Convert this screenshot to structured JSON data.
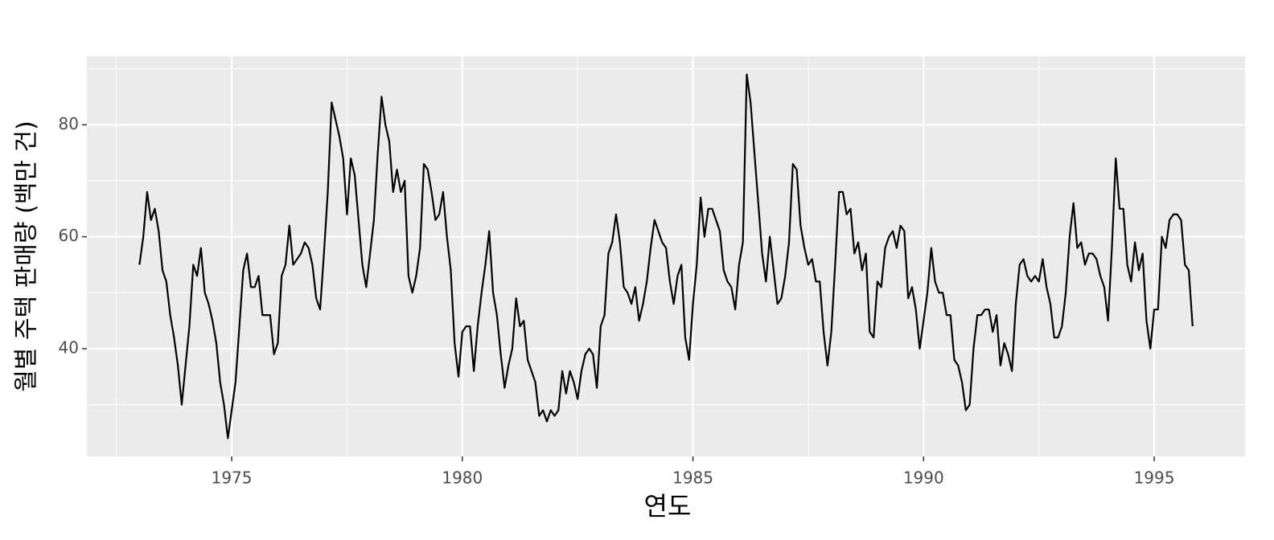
{
  "chart_data": {
    "type": "line",
    "x_label": "연도",
    "y_label": "월별 주택 판매량 (백만 건)",
    "x": [
      1973,
      1973.083,
      1973.167,
      1973.25,
      1973.333,
      1973.417,
      1973.5,
      1973.583,
      1973.667,
      1973.75,
      1973.833,
      1973.917,
      1974,
      1974.083,
      1974.167,
      1974.25,
      1974.333,
      1974.417,
      1974.5,
      1974.583,
      1974.667,
      1974.75,
      1974.833,
      1974.917,
      1975,
      1975.083,
      1975.167,
      1975.25,
      1975.333,
      1975.417,
      1975.5,
      1975.583,
      1975.667,
      1975.75,
      1975.833,
      1975.917,
      1976,
      1976.083,
      1976.167,
      1976.25,
      1976.333,
      1976.417,
      1976.5,
      1976.583,
      1976.667,
      1976.75,
      1976.833,
      1976.917,
      1977,
      1977.083,
      1977.167,
      1977.25,
      1977.333,
      1977.417,
      1977.5,
      1977.583,
      1977.667,
      1977.75,
      1977.833,
      1977.917,
      1978,
      1978.083,
      1978.167,
      1978.25,
      1978.333,
      1978.417,
      1978.5,
      1978.583,
      1978.667,
      1978.75,
      1978.833,
      1978.917,
      1979,
      1979.083,
      1979.167,
      1979.25,
      1979.333,
      1979.417,
      1979.5,
      1979.583,
      1979.667,
      1979.75,
      1979.833,
      1979.917,
      1980,
      1980.083,
      1980.167,
      1980.25,
      1980.333,
      1980.417,
      1980.5,
      1980.583,
      1980.667,
      1980.75,
      1980.833,
      1980.917,
      1981,
      1981.083,
      1981.167,
      1981.25,
      1981.333,
      1981.417,
      1981.5,
      1981.583,
      1981.667,
      1981.75,
      1981.833,
      1981.917,
      1982,
      1982.083,
      1982.167,
      1982.25,
      1982.333,
      1982.417,
      1982.5,
      1982.583,
      1982.667,
      1982.75,
      1982.833,
      1982.917,
      1983,
      1983.083,
      1983.167,
      1983.25,
      1983.333,
      1983.417,
      1983.5,
      1983.583,
      1983.667,
      1983.75,
      1983.833,
      1983.917,
      1984,
      1984.083,
      1984.167,
      1984.25,
      1984.333,
      1984.417,
      1984.5,
      1984.583,
      1984.667,
      1984.75,
      1984.833,
      1984.917,
      1985,
      1985.083,
      1985.167,
      1985.25,
      1985.333,
      1985.417,
      1985.5,
      1985.583,
      1985.667,
      1985.75,
      1985.833,
      1985.917,
      1986,
      1986.083,
      1986.167,
      1986.25,
      1986.333,
      1986.417,
      1986.5,
      1986.583,
      1986.667,
      1986.75,
      1986.833,
      1986.917,
      1987,
      1987.083,
      1987.167,
      1987.25,
      1987.333,
      1987.417,
      1987.5,
      1987.583,
      1987.667,
      1987.75,
      1987.833,
      1987.917,
      1988,
      1988.083,
      1988.167,
      1988.25,
      1988.333,
      1988.417,
      1988.5,
      1988.583,
      1988.667,
      1988.75,
      1988.833,
      1988.917,
      1989,
      1989.083,
      1989.167,
      1989.25,
      1989.333,
      1989.417,
      1989.5,
      1989.583,
      1989.667,
      1989.75,
      1989.833,
      1989.917,
      1990,
      1990.083,
      1990.167,
      1990.25,
      1990.333,
      1990.417,
      1990.5,
      1990.583,
      1990.667,
      1990.75,
      1990.833,
      1990.917,
      1991,
      1991.083,
      1991.167,
      1991.25,
      1991.333,
      1991.417,
      1991.5,
      1991.583,
      1991.667,
      1991.75,
      1991.833,
      1991.917,
      1992,
      1992.083,
      1992.167,
      1992.25,
      1992.333,
      1992.417,
      1992.5,
      1992.583,
      1992.667,
      1992.75,
      1992.833,
      1992.917,
      1993,
      1993.083,
      1993.167,
      1993.25,
      1993.333,
      1993.417,
      1993.5,
      1993.583,
      1993.667,
      1993.75,
      1993.833,
      1993.917,
      1994,
      1994.083,
      1994.167,
      1994.25,
      1994.333,
      1994.417,
      1994.5,
      1994.583,
      1994.667,
      1994.75,
      1994.833,
      1994.917,
      1995,
      1995.083,
      1995.167,
      1995.25,
      1995.333,
      1995.417,
      1995.5,
      1995.583,
      1995.667,
      1995.75,
      1995.833
    ],
    "values": [
      55,
      60,
      68,
      63,
      65,
      61,
      54,
      52,
      46,
      42,
      37,
      30,
      37,
      44,
      55,
      53,
      58,
      50,
      48,
      45,
      41,
      34,
      30,
      24,
      29,
      34,
      44,
      54,
      57,
      51,
      51,
      53,
      46,
      46,
      46,
      39,
      41,
      53,
      55,
      62,
      55,
      56,
      57,
      59,
      58,
      55,
      49,
      47,
      57,
      68,
      84,
      81,
      78,
      74,
      64,
      74,
      71,
      63,
      55,
      51,
      57,
      63,
      75,
      85,
      80,
      77,
      68,
      72,
      68,
      70,
      53,
      50,
      53,
      58,
      73,
      72,
      68,
      63,
      64,
      68,
      60,
      54,
      41,
      35,
      43,
      44,
      44,
      36,
      44,
      50,
      55,
      61,
      50,
      46,
      39,
      33,
      37,
      40,
      49,
      44,
      45,
      38,
      36,
      34,
      28,
      29,
      27,
      29,
      28,
      29,
      36,
      32,
      36,
      34,
      31,
      36,
      39,
      40,
      39,
      33,
      44,
      46,
      57,
      59,
      64,
      59,
      51,
      50,
      48,
      51,
      45,
      48,
      52,
      58,
      63,
      61,
      59,
      58,
      52,
      48,
      53,
      55,
      42,
      38,
      48,
      55,
      67,
      60,
      65,
      65,
      63,
      61,
      54,
      52,
      51,
      47,
      55,
      59,
      89,
      84,
      75,
      66,
      57,
      52,
      60,
      54,
      48,
      49,
      53,
      59,
      73,
      72,
      62,
      58,
      55,
      56,
      52,
      52,
      43,
      37,
      43,
      55,
      68,
      68,
      64,
      65,
      57,
      59,
      54,
      57,
      43,
      42,
      52,
      51,
      58,
      60,
      61,
      58,
      62,
      61,
      49,
      51,
      47,
      40,
      45,
      50,
      58,
      52,
      50,
      50,
      46,
      46,
      38,
      37,
      34,
      29,
      30,
      40,
      46,
      46,
      47,
      47,
      43,
      46,
      37,
      41,
      39,
      36,
      48,
      55,
      56,
      53,
      52,
      53,
      52,
      56,
      51,
      48,
      42,
      42,
      44,
      50,
      60,
      66,
      58,
      59,
      55,
      57,
      57,
      56,
      53,
      51,
      45,
      58,
      74,
      65,
      65,
      55,
      52,
      59,
      54,
      57,
      45,
      40,
      47,
      47,
      60,
      58,
      63,
      64,
      64,
      63,
      55,
      54,
      44
    ],
    "color": "#000000",
    "xlim": [
      1971.86,
      1996.97
    ],
    "ylim": [
      20.75,
      92.25
    ],
    "xticks": [
      1975,
      1980,
      1985,
      1990,
      1995
    ],
    "yticks": [
      40,
      60,
      80
    ],
    "minor_xticks": [
      1972.5,
      1977.5,
      1982.5,
      1987.5,
      1992.5
    ],
    "minor_yticks": [
      30,
      50,
      70,
      90
    ],
    "grid": true
  }
}
